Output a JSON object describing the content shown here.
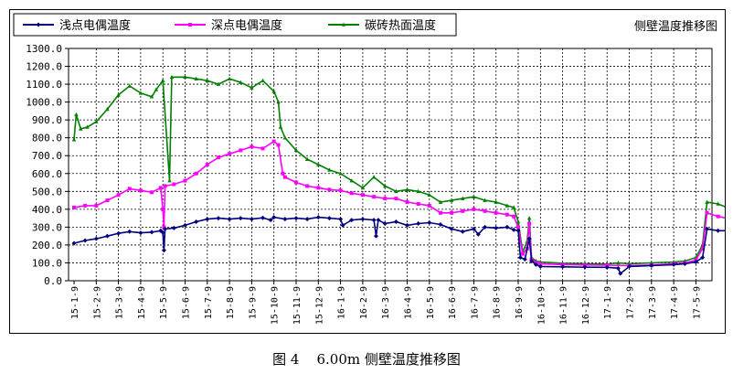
{
  "caption": {
    "figure": "图 4",
    "text": "6.00m 侧壁温度推移图"
  },
  "chart_data": {
    "type": "line",
    "title": "侧壁温度推移图",
    "ylim": [
      0,
      1300
    ],
    "yticks": [
      "0.0",
      "100.0",
      "200.0",
      "300.0",
      "400.0",
      "500.0",
      "600.0",
      "700.0",
      "800.0",
      "900.0",
      "1000.0",
      "1100.0",
      "1200.0",
      "1300.0"
    ],
    "categories": [
      "15-1-9",
      "15-2-9",
      "15-3-9",
      "15-4-9",
      "15-5-9",
      "15-6-9",
      "15-7-9",
      "15-8-9",
      "15-9-9",
      "15-10-9",
      "15-11-9",
      "15-12-9",
      "16-1-9",
      "16-2-9",
      "16-3-9",
      "16-4-9",
      "16-5-9",
      "16-6-9",
      "16-7-9",
      "16-8-9",
      "16-9-9",
      "16-10-9",
      "16-11-9",
      "16-12-9",
      "17-1-9",
      "17-2-9",
      "17-3-9",
      "17-4-9",
      "17-5-9"
    ],
    "grid": true,
    "legend_position": "top-left",
    "series": [
      {
        "name": "浅点电偶温度",
        "color": "#000080",
        "marker": "diamond",
        "points": [
          [
            0,
            210
          ],
          [
            0.5,
            225
          ],
          [
            1,
            235
          ],
          [
            1.5,
            250
          ],
          [
            2,
            265
          ],
          [
            2.5,
            275
          ],
          [
            3,
            268
          ],
          [
            3.5,
            272
          ],
          [
            3.9,
            280
          ],
          [
            4,
            270
          ],
          [
            4.05,
            170
          ],
          [
            4.1,
            290
          ],
          [
            4.5,
            295
          ],
          [
            5,
            310
          ],
          [
            5.5,
            330
          ],
          [
            6,
            345
          ],
          [
            6.5,
            350
          ],
          [
            7,
            345
          ],
          [
            7.5,
            350
          ],
          [
            8,
            345
          ],
          [
            8.5,
            352
          ],
          [
            8.85,
            340
          ],
          [
            9,
            355
          ],
          [
            9.5,
            345
          ],
          [
            10,
            350
          ],
          [
            10.5,
            345
          ],
          [
            11,
            355
          ],
          [
            11.5,
            350
          ],
          [
            12,
            345
          ],
          [
            12.1,
            310
          ],
          [
            12.5,
            340
          ],
          [
            13,
            345
          ],
          [
            13.5,
            340
          ],
          [
            13.6,
            250
          ],
          [
            13.7,
            340
          ],
          [
            14,
            320
          ],
          [
            14.5,
            330
          ],
          [
            15,
            310
          ],
          [
            15.5,
            320
          ],
          [
            16,
            325
          ],
          [
            16.5,
            315
          ],
          [
            17,
            290
          ],
          [
            17.5,
            275
          ],
          [
            18,
            290
          ],
          [
            18.2,
            260
          ],
          [
            18.5,
            300
          ],
          [
            19,
            295
          ],
          [
            19.5,
            300
          ],
          [
            19.8,
            285
          ],
          [
            20,
            280
          ],
          [
            20.1,
            130
          ],
          [
            20.3,
            120
          ],
          [
            20.5,
            235
          ],
          [
            20.6,
            110
          ],
          [
            20.8,
            90
          ],
          [
            21,
            80
          ],
          [
            22,
            78
          ],
          [
            23,
            76
          ],
          [
            24,
            75
          ],
          [
            24.5,
            70
          ],
          [
            24.6,
            40
          ],
          [
            25,
            80
          ],
          [
            26,
            85
          ],
          [
            27,
            90
          ],
          [
            27.5,
            95
          ],
          [
            28,
            105
          ],
          [
            28.3,
            130
          ],
          [
            28.5,
            290
          ],
          [
            29,
            280
          ],
          [
            29.4,
            280
          ]
        ]
      },
      {
        "name": "深点电偶温度",
        "color": "#ff00ff",
        "marker": "square",
        "points": [
          [
            0,
            410
          ],
          [
            0.5,
            420
          ],
          [
            1,
            420
          ],
          [
            1.5,
            450
          ],
          [
            2,
            480
          ],
          [
            2.5,
            515
          ],
          [
            3,
            505
          ],
          [
            3.5,
            495
          ],
          [
            3.9,
            520
          ],
          [
            4,
            400
          ],
          [
            4.05,
            300
          ],
          [
            4.1,
            530
          ],
          [
            4.5,
            540
          ],
          [
            5,
            560
          ],
          [
            5.5,
            600
          ],
          [
            6,
            650
          ],
          [
            6.5,
            690
          ],
          [
            7,
            710
          ],
          [
            7.5,
            730
          ],
          [
            8,
            750
          ],
          [
            8.5,
            740
          ],
          [
            9,
            780
          ],
          [
            9.2,
            760
          ],
          [
            9.4,
            600
          ],
          [
            9.5,
            580
          ],
          [
            10,
            550
          ],
          [
            10.5,
            530
          ],
          [
            11,
            520
          ],
          [
            11.5,
            510
          ],
          [
            12,
            505
          ],
          [
            12.5,
            490
          ],
          [
            13,
            480
          ],
          [
            13.5,
            470
          ],
          [
            14,
            460
          ],
          [
            14.5,
            460
          ],
          [
            15,
            440
          ],
          [
            15.5,
            430
          ],
          [
            16,
            420
          ],
          [
            16.5,
            380
          ],
          [
            17,
            380
          ],
          [
            17.5,
            390
          ],
          [
            18,
            400
          ],
          [
            18.5,
            390
          ],
          [
            19,
            380
          ],
          [
            19.5,
            370
          ],
          [
            19.8,
            360
          ],
          [
            20,
            300
          ],
          [
            20.2,
            150
          ],
          [
            20.4,
            180
          ],
          [
            20.5,
            320
          ],
          [
            20.6,
            120
          ],
          [
            20.8,
            100
          ],
          [
            21,
            95
          ],
          [
            22,
            90
          ],
          [
            23,
            88
          ],
          [
            24,
            87
          ],
          [
            25,
            85
          ],
          [
            26,
            88
          ],
          [
            27,
            95
          ],
          [
            27.5,
            100
          ],
          [
            28,
            115
          ],
          [
            28.3,
            180
          ],
          [
            28.5,
            380
          ],
          [
            29,
            360
          ],
          [
            29.4,
            350
          ]
        ]
      },
      {
        "name": "碳砖热面温度",
        "color": "#008000",
        "marker": "triangle",
        "points": [
          [
            0,
            790
          ],
          [
            0.1,
            930
          ],
          [
            0.3,
            850
          ],
          [
            0.6,
            860
          ],
          [
            1,
            890
          ],
          [
            1.5,
            960
          ],
          [
            2,
            1040
          ],
          [
            2.5,
            1090
          ],
          [
            3,
            1050
          ],
          [
            3.5,
            1030
          ],
          [
            3.7,
            1070
          ],
          [
            4,
            1120
          ],
          [
            4.3,
            560
          ],
          [
            4.4,
            1140
          ],
          [
            5,
            1140
          ],
          [
            5.5,
            1130
          ],
          [
            6,
            1120
          ],
          [
            6.5,
            1100
          ],
          [
            7,
            1130
          ],
          [
            7.5,
            1110
          ],
          [
            8,
            1080
          ],
          [
            8.5,
            1120
          ],
          [
            9,
            1060
          ],
          [
            9.2,
            1000
          ],
          [
            9.3,
            860
          ],
          [
            9.5,
            800
          ],
          [
            10,
            730
          ],
          [
            10.5,
            680
          ],
          [
            11,
            650
          ],
          [
            11.5,
            620
          ],
          [
            12,
            600
          ],
          [
            12.5,
            560
          ],
          [
            13,
            520
          ],
          [
            13.5,
            580
          ],
          [
            14,
            530
          ],
          [
            14.5,
            500
          ],
          [
            15,
            510
          ],
          [
            15.5,
            500
          ],
          [
            16,
            480
          ],
          [
            16.5,
            440
          ],
          [
            17,
            450
          ],
          [
            17.5,
            460
          ],
          [
            18,
            470
          ],
          [
            18.5,
            450
          ],
          [
            19,
            440
          ],
          [
            19.5,
            420
          ],
          [
            19.8,
            410
          ],
          [
            20,
            330
          ],
          [
            20.2,
            160
          ],
          [
            20.4,
            220
          ],
          [
            20.5,
            350
          ],
          [
            20.6,
            130
          ],
          [
            20.8,
            110
          ],
          [
            21,
            105
          ],
          [
            22,
            98
          ],
          [
            23,
            95
          ],
          [
            24,
            93
          ],
          [
            24.5,
            100
          ],
          [
            25,
            95
          ],
          [
            26,
            100
          ],
          [
            27,
            105
          ],
          [
            27.5,
            110
          ],
          [
            28,
            130
          ],
          [
            28.3,
            200
          ],
          [
            28.5,
            440
          ],
          [
            29,
            430
          ],
          [
            29.4,
            410
          ]
        ]
      }
    ]
  }
}
